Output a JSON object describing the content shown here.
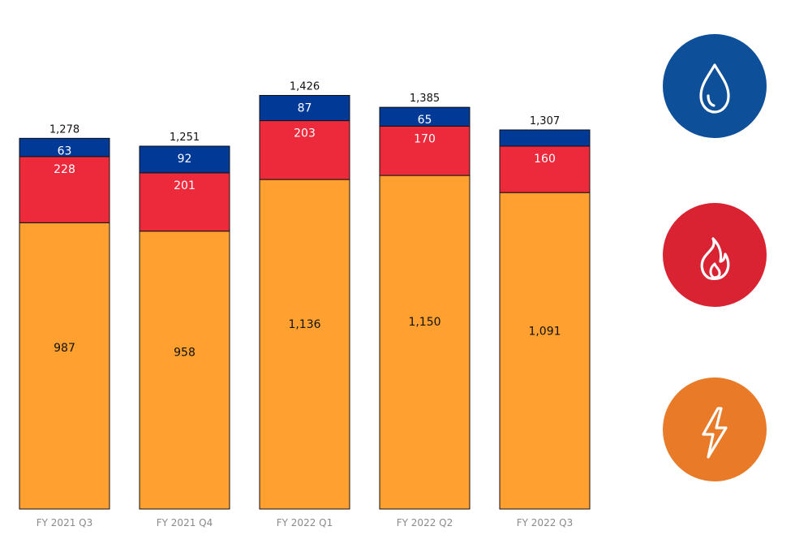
{
  "chart_data": {
    "type": "bar",
    "stacked": true,
    "categories": [
      "FY 2021 Q3",
      "FY 2021 Q4",
      "FY 2022 Q1",
      "FY 2022 Q2",
      "FY 2022 Q3"
    ],
    "series": [
      {
        "values": [
          987,
          958,
          1136,
          1150,
          1091
        ],
        "color": "#FFA030",
        "value_labels": [
          "987",
          "958",
          "1,136",
          "1,150",
          "1,091"
        ]
      },
      {
        "values": [
          228,
          201,
          203,
          170,
          160
        ],
        "color": "#EC2A3C",
        "value_labels": [
          "228",
          "201",
          "203",
          "170",
          "160"
        ]
      },
      {
        "values": [
          63,
          92,
          87,
          65,
          56
        ],
        "color": "#003A96",
        "value_labels": [
          "63",
          "92",
          "87",
          "65",
          ""
        ]
      }
    ],
    "totals": [
      1278,
      1251,
      1426,
      1385,
      1307
    ],
    "total_labels": [
      "1,278",
      "1,251",
      "1,426",
      "1,385",
      "1,307"
    ],
    "ylim": [
      0,
      1500
    ],
    "grid": false,
    "title": "",
    "xlabel": "",
    "ylabel": ""
  },
  "icons": [
    {
      "name": "water-drop-icon",
      "color": "#0D4F99"
    },
    {
      "name": "flame-icon",
      "color": "#D92232"
    },
    {
      "name": "lightning-bolt-icon",
      "color": "#E87A28"
    }
  ]
}
